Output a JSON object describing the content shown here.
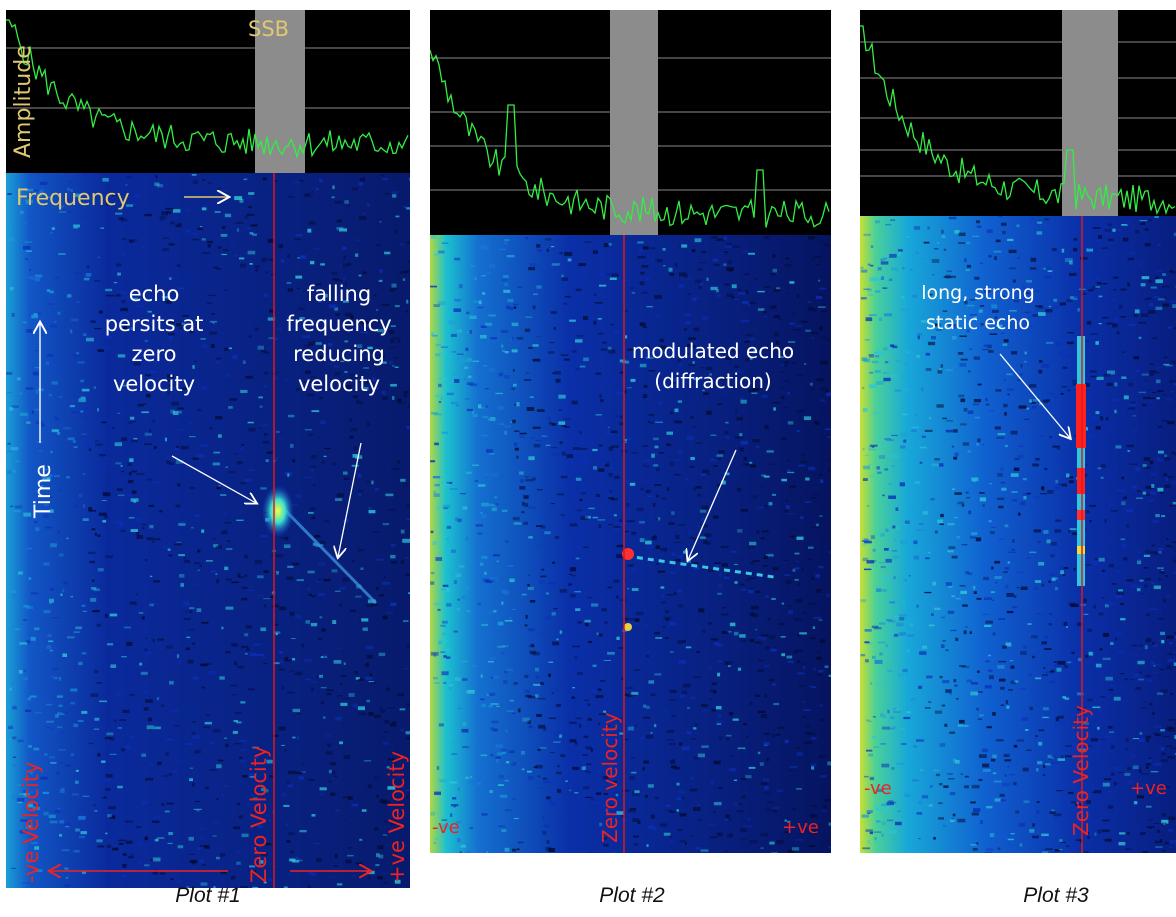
{
  "colors": {
    "background": "#ffffff",
    "amplitude_panel": "#000000",
    "amplitude_trace": "#33ee44",
    "gridline": "#8a8a8a",
    "ssb_band": "#8c8c8c",
    "waterfall_base": "#06125a",
    "noise_low": "#0b2fb8",
    "noise_high": "#19b8d8",
    "edge_warm": "#c8e030",
    "echo_hot": "#ff2020",
    "zero_velocity_line": "#e01818",
    "annotation_text": "#ffffff",
    "label_text": "#e0c870",
    "axis_label_red": "#ee2222"
  },
  "chart_data": [
    {
      "type": "spectrogram",
      "caption": "Plot #1",
      "amplitude_panel": {
        "ylabel": "Amplitude",
        "band_label": "SSB",
        "trace_shape": "decaying noise from left edge"
      },
      "waterfall": {
        "xlabel": "Frequency",
        "ylabel": "Time",
        "left_label": "-ve Velocity",
        "center_label": "Zero Velocity",
        "right_label": "+ve Velocity",
        "annotations": [
          "echo persits at zero velocity",
          "falling frequency reducing velocity"
        ],
        "features": [
          "bright echo at zero velocity",
          "falling-frequency streak"
        ]
      }
    },
    {
      "type": "spectrogram",
      "caption": "Plot #2",
      "amplitude_panel": {
        "trace_shape": "noise with peaks"
      },
      "waterfall": {
        "left_label": "-ve",
        "center_label": "Zero velocity",
        "right_label": "+ve",
        "annotations": [
          "modulated echo (diffraction)"
        ],
        "features": [
          "point echo at zero velocity",
          "modulated streak toward +ve"
        ]
      }
    },
    {
      "type": "spectrogram",
      "caption": "Plot #3",
      "amplitude_panel": {
        "trace_shape": "decaying noise from left edge"
      },
      "waterfall": {
        "left_label": "-ve",
        "center_label": "Zero Velocity",
        "right_label": "+ve",
        "annotations": [
          "long, strong static echo"
        ],
        "features": [
          "long static echo along zero velocity"
        ]
      }
    }
  ]
}
